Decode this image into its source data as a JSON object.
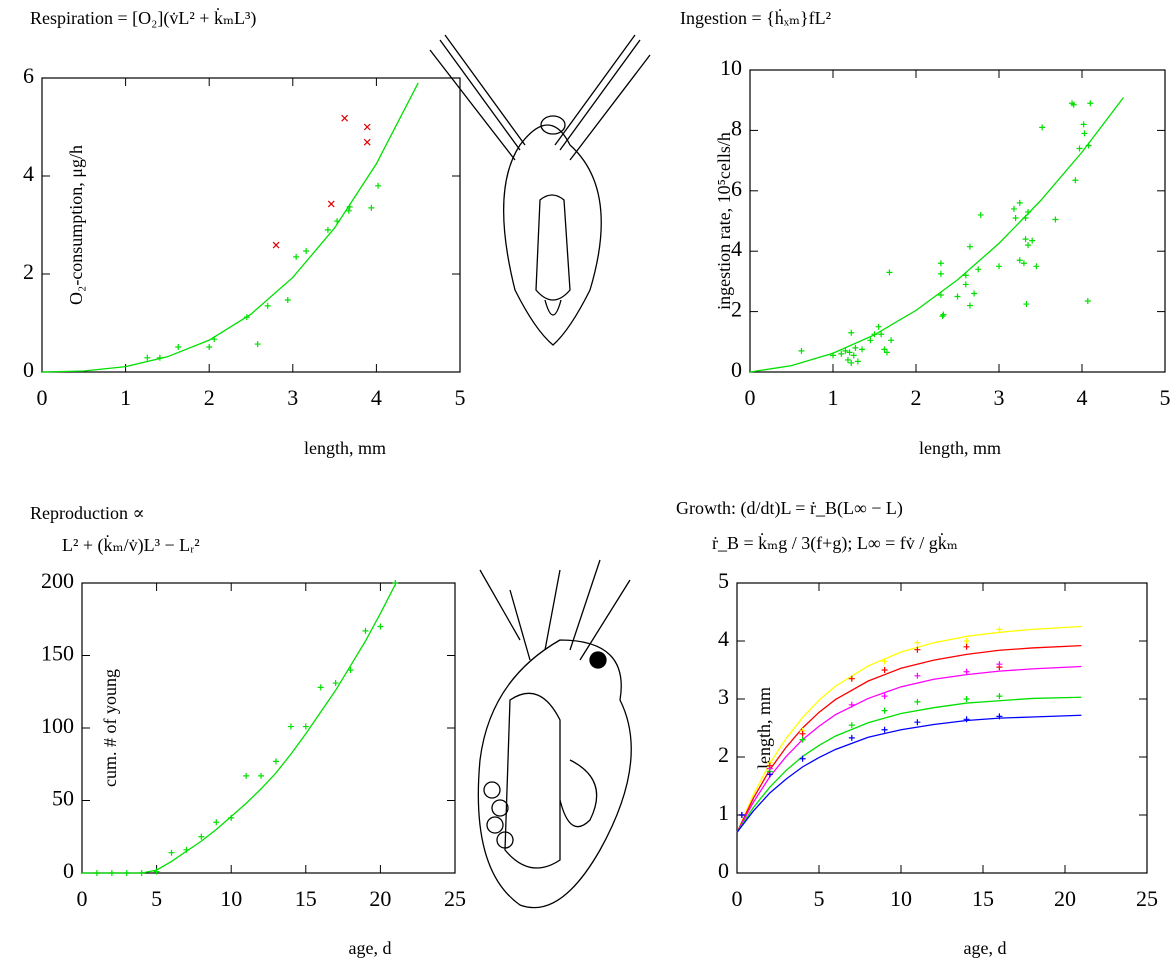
{
  "chart_data": [
    {
      "type": "line",
      "title": [
        "Respiration = [O₂](v̇L² + k̇ₘL³)"
      ],
      "xlabel": "length, mm",
      "ylabel": "O₂-consumption, μg/h",
      "xlim": [
        0,
        5
      ],
      "ylim": [
        0,
        6
      ],
      "xticks": [
        0,
        1,
        2,
        3,
        4,
        5
      ],
      "yticks": [
        0,
        2,
        4,
        6
      ],
      "x": [
        0,
        0.5,
        1,
        1.5,
        2,
        2.5,
        3,
        3.5,
        4,
        4.5
      ],
      "series": [
        {
          "color": "#00e000",
          "values": [
            0,
            0.02,
            0.11,
            0.31,
            0.65,
            1.18,
            1.93,
            2.94,
            4.25,
            5.9
          ]
        }
      ],
      "points": [
        {
          "color": "#00e000",
          "marker": "+",
          "x": [
            1.26,
            1.41,
            1.63,
            2.0,
            2.06,
            2.45,
            2.58,
            2.7,
            2.94,
            3.04,
            3.16,
            3.42,
            3.53,
            3.67,
            3.68,
            3.94,
            4.02
          ],
          "values": [
            0.29,
            0.29,
            0.51,
            0.51,
            0.67,
            1.12,
            0.57,
            1.35,
            1.47,
            2.35,
            2.47,
            2.9,
            3.08,
            3.29,
            3.37,
            3.35,
            3.8
          ]
        },
        {
          "color": "#e00000",
          "marker": "x",
          "x": [
            2.8,
            3.46,
            3.62,
            3.89,
            3.89
          ],
          "values": [
            2.59,
            3.43,
            5.18,
            5.0,
            4.69
          ]
        }
      ]
    },
    {
      "type": "line",
      "title": [
        "Ingestion = {ḣₓₘ}fL²"
      ],
      "xlabel": "length, mm",
      "ylabel": "ingestion rate, 10⁵cells/h",
      "xlim": [
        0,
        5
      ],
      "ylim": [
        0,
        10
      ],
      "xticks": [
        0,
        1,
        2,
        3,
        4,
        5
      ],
      "yticks": [
        0,
        2,
        4,
        6,
        8,
        10
      ],
      "x": [
        0,
        0.5,
        1,
        1.5,
        2,
        2.5,
        3,
        3.5,
        4,
        4.5
      ],
      "series": [
        {
          "color": "#00e000",
          "values": [
            0,
            0.21,
            0.62,
            1.23,
            2.04,
            3.05,
            4.26,
            5.67,
            7.28,
            9.09
          ]
        }
      ],
      "points": [
        {
          "color": "#00e000",
          "marker": "+",
          "x": [
            0.62,
            1.0,
            1.1,
            1.15,
            1.18,
            1.2,
            1.22,
            1.22,
            1.25,
            1.27,
            1.3,
            1.35,
            1.45,
            1.5,
            1.55,
            1.58,
            1.62,
            1.65,
            1.68,
            1.7,
            2.3,
            2.3,
            2.3,
            2.32,
            2.33,
            2.5,
            2.6,
            2.6,
            2.65,
            2.65,
            2.7,
            2.75,
            2.78,
            3.0,
            3.18,
            3.2,
            3.25,
            3.25,
            3.3,
            3.32,
            3.35,
            3.32,
            3.35,
            3.33,
            3.4,
            3.45,
            3.52,
            3.68,
            3.88,
            3.9,
            3.92,
            3.97,
            4.02,
            4.03,
            4.07,
            4.08,
            4.1
          ],
          "values": [
            0.7,
            0.55,
            0.6,
            0.7,
            0.4,
            0.65,
            0.3,
            1.3,
            0.55,
            0.8,
            0.35,
            0.75,
            1.05,
            1.25,
            1.5,
            1.25,
            0.75,
            0.65,
            3.3,
            1.05,
            3.6,
            3.25,
            2.55,
            1.85,
            1.9,
            2.5,
            3.2,
            2.9,
            2.2,
            4.15,
            2.6,
            3.4,
            5.2,
            3.5,
            5.4,
            5.1,
            3.7,
            5.6,
            3.6,
            5.1,
            5.3,
            4.4,
            4.2,
            2.25,
            4.35,
            3.5,
            8.1,
            5.05,
            8.9,
            8.85,
            6.35,
            7.4,
            8.2,
            7.9,
            2.35,
            7.5,
            8.9
          ]
        }
      ]
    },
    {
      "type": "line",
      "title": [
        "Reproduction ∝",
        "L² + (k̇ₘ/v̇)L³ − Lᵣ²"
      ],
      "xlabel": "age, d",
      "ylabel": "cum. # of young",
      "xlim": [
        0,
        25
      ],
      "ylim": [
        0,
        200
      ],
      "xticks": [
        0,
        5,
        10,
        15,
        20,
        25
      ],
      "yticks": [
        0,
        50,
        100,
        150,
        200
      ],
      "x": [
        0,
        1,
        2,
        3,
        4,
        5,
        6,
        7,
        8,
        9,
        10,
        11,
        12,
        13,
        14,
        15,
        16,
        17,
        18,
        19,
        20,
        21
      ],
      "series": [
        {
          "color": "#00e000",
          "values": [
            0,
            0,
            0,
            0,
            0,
            2,
            8,
            15,
            22,
            30,
            39,
            48,
            58,
            69,
            82,
            96,
            111,
            126,
            143,
            160,
            179,
            199
          ]
        }
      ],
      "points": [
        {
          "color": "#00e000",
          "marker": "+",
          "x": [
            1,
            2,
            3,
            4,
            5,
            6,
            7,
            8,
            9,
            10,
            11,
            12,
            13,
            14,
            15,
            16,
            17,
            18,
            19,
            20,
            21
          ],
          "values": [
            0,
            0,
            0,
            0,
            1,
            14,
            16,
            25,
            35,
            38,
            67,
            67,
            77,
            101,
            101,
            128,
            131,
            140,
            167,
            170,
            200
          ]
        }
      ]
    },
    {
      "type": "line",
      "title": [
        "Growth: (d/dt)L = ṙ_B(L∞ − L)",
        "ṙ_B = k̇ₘg / 3(f+g);    L∞ = fv̇ / gk̇ₘ"
      ],
      "xlabel": "age, d",
      "ylabel": "length, mm",
      "xlim": [
        0,
        25
      ],
      "ylim": [
        0,
        5
      ],
      "xticks": [
        0,
        5,
        10,
        15,
        20,
        25
      ],
      "yticks": [
        0,
        1,
        2,
        3,
        4,
        5
      ],
      "x": [
        0,
        1,
        2,
        3,
        4,
        5,
        6,
        8,
        10,
        12,
        14,
        16,
        18,
        21
      ],
      "series": [
        {
          "color": "#ffff00",
          "values": [
            0.7,
            1.35,
            1.89,
            2.32,
            2.68,
            2.98,
            3.22,
            3.57,
            3.81,
            3.97,
            4.08,
            4.15,
            4.2,
            4.25
          ]
        },
        {
          "color": "#ff0000",
          "values": [
            0.7,
            1.29,
            1.78,
            2.17,
            2.5,
            2.77,
            2.99,
            3.31,
            3.53,
            3.67,
            3.77,
            3.84,
            3.88,
            3.92
          ]
        },
        {
          "color": "#ff00ff",
          "values": [
            0.7,
            1.22,
            1.66,
            2.01,
            2.3,
            2.53,
            2.73,
            3.01,
            3.21,
            3.34,
            3.42,
            3.48,
            3.52,
            3.56
          ]
        },
        {
          "color": "#00e000",
          "values": [
            0.7,
            1.13,
            1.48,
            1.77,
            2.01,
            2.2,
            2.36,
            2.59,
            2.75,
            2.85,
            2.93,
            2.97,
            3.01,
            3.03
          ]
        },
        {
          "color": "#0000ff",
          "values": [
            0.7,
            1.07,
            1.38,
            1.62,
            1.83,
            1.99,
            2.13,
            2.34,
            2.47,
            2.56,
            2.63,
            2.67,
            2.69,
            2.72
          ]
        }
      ],
      "points": [
        {
          "color": "#ffff00",
          "marker": "+",
          "x": [
            0.3,
            2,
            4,
            7,
            9,
            11,
            14,
            16
          ],
          "values": [
            1.0,
            1.9,
            2.45,
            3.35,
            3.65,
            3.97,
            4.0,
            4.2
          ]
        },
        {
          "color": "#ff0000",
          "marker": "+",
          "x": [
            0.3,
            2,
            4,
            7,
            9,
            11,
            14,
            16
          ],
          "values": [
            1.0,
            1.85,
            2.4,
            3.35,
            3.5,
            3.85,
            3.9,
            3.55
          ]
        },
        {
          "color": "#ff00ff",
          "marker": "+",
          "x": [
            0.3,
            2,
            4,
            7,
            9,
            11,
            14,
            16
          ],
          "values": [
            1.0,
            1.8,
            2.3,
            2.9,
            3.05,
            3.4,
            3.47,
            3.6
          ]
        },
        {
          "color": "#00e000",
          "marker": "+",
          "x": [
            0.3,
            2,
            4,
            7,
            9,
            11,
            14,
            16
          ],
          "values": [
            1.0,
            1.75,
            2.3,
            2.55,
            2.8,
            2.95,
            3.0,
            3.05
          ]
        },
        {
          "color": "#0000ff",
          "marker": "+",
          "x": [
            0.3,
            2,
            4,
            7,
            9,
            11,
            14,
            16
          ],
          "values": [
            1.0,
            1.7,
            1.97,
            2.33,
            2.47,
            2.6,
            2.65,
            2.7
          ]
        }
      ]
    }
  ]
}
